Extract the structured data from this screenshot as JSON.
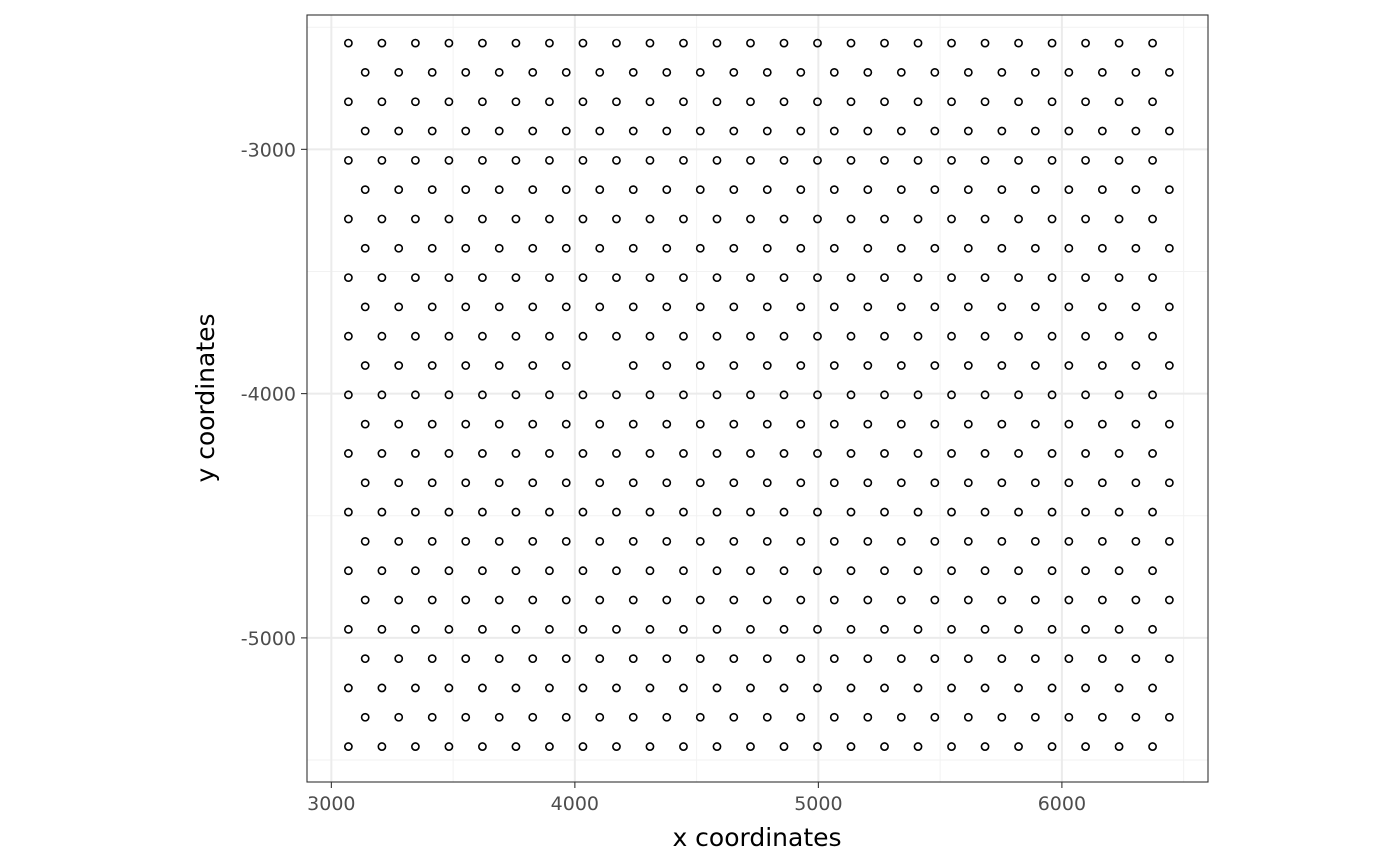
{
  "chart_data": {
    "type": "scatter",
    "title": "",
    "xlabel": "x coordinates",
    "ylabel": "y coordinates",
    "xlim": [
      2900,
      6600
    ],
    "ylim": [
      -5590,
      -2450
    ],
    "x_ticks": [
      3000,
      4000,
      5000,
      6000
    ],
    "x_tick_labels": [
      "3000",
      "4000",
      "5000",
      "6000"
    ],
    "y_ticks": [
      -3000,
      -4000,
      -5000
    ],
    "y_tick_labels": [
      "-3000",
      "-4000",
      "-5000"
    ],
    "grid": true,
    "legend": "none",
    "marker": "open-circle",
    "colors": {
      "marker_stroke": "#000000",
      "grid_major": "#ebebeb",
      "grid_minor": "#f2f2f2",
      "panel_border": "#333333",
      "tick_label": "#4d4d4d"
    },
    "grid_layout": {
      "even_row_x_start": 3070,
      "odd_row_x_start": 3139,
      "x_step": 137.6,
      "even_row_count": 25,
      "odd_row_count": 25,
      "y_start": -2565,
      "y_step": -120,
      "row_count": 25
    },
    "missing_points": [
      [
        4104,
        -3885
      ]
    ]
  }
}
